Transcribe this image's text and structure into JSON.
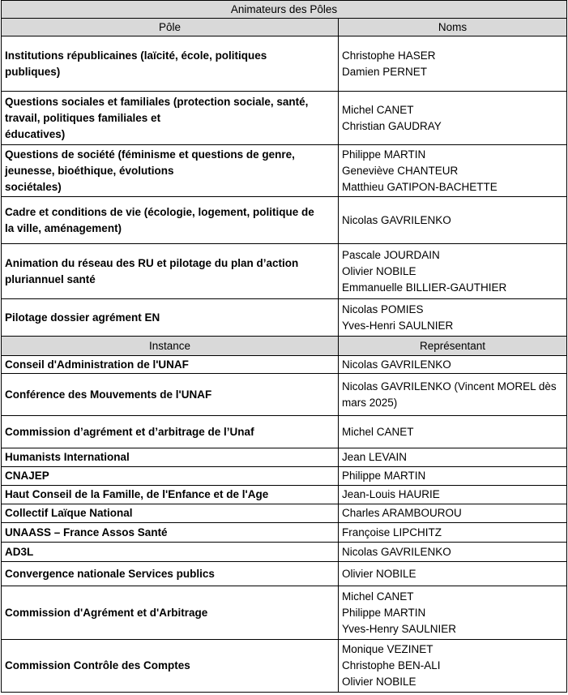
{
  "title": "Animateurs des Pôles",
  "poles": {
    "header": [
      "Pôle",
      "Noms"
    ],
    "rows": [
      {
        "pole": [
          "Institutions républicaines (laïcité, école, politiques",
          "publiques)"
        ],
        "noms": [
          "Christophe HASER",
          "Damien PERNET"
        ]
      },
      {
        "pole": [
          "Questions sociales et familiales (protection sociale, santé,",
          "travail, politiques familiales et",
          "éducatives)"
        ],
        "noms": [
          "Michel CANET",
          "Christian GAUDRAY"
        ]
      },
      {
        "pole": [
          "Questions de société (féminisme et questions de genre,",
          "jeunesse, bioéthique, évolutions",
          "sociétales)"
        ],
        "noms": [
          "Philippe MARTIN",
          "Geneviève CHANTEUR",
          "Matthieu GATIPON-BACHETTE"
        ]
      },
      {
        "pole": [
          "Cadre et conditions de vie (écologie, logement, politique de",
          "la ville, aménagement)"
        ],
        "noms": [
          "Nicolas GAVRILENKO"
        ]
      },
      {
        "pole": [
          "Animation du réseau des RU et pilotage du plan d’action",
          "pluriannuel santé"
        ],
        "noms": [
          "Pascale JOURDAIN",
          "Olivier NOBILE",
          "Emmanuelle BILLIER-GAUTHIER"
        ]
      },
      {
        "pole": [
          "Pilotage dossier agrément EN"
        ],
        "noms": [
          "Nicolas POMIES",
          "Yves-Henri SAULNIER"
        ]
      }
    ]
  },
  "instances": {
    "header": [
      "Instance",
      "Représentant"
    ],
    "rows": [
      {
        "instance": [
          "Conseil d'Administration de l'UNAF"
        ],
        "representant": [
          "Nicolas GAVRILENKO"
        ]
      },
      {
        "instance": [
          "Conférence des Mouvements de l'UNAF"
        ],
        "representant": [
          "Nicolas GAVRILENKO (Vincent MOREL dès",
          "mars 2025)"
        ]
      },
      {
        "instance": [
          "Commission d’agrément et d’arbitrage de l’Unaf"
        ],
        "representant": [
          "Michel CANET"
        ]
      },
      {
        "instance": [
          "Humanists International"
        ],
        "representant": [
          "Jean LEVAIN"
        ]
      },
      {
        "instance": [
          "CNAJEP"
        ],
        "representant": [
          "Philippe MARTIN"
        ]
      },
      {
        "instance": [
          "Haut Conseil de la Famille, de l'Enfance et de l'Age"
        ],
        "representant": [
          "Jean-Louis HAURIE"
        ]
      },
      {
        "instance": [
          "Collectif Laïque National"
        ],
        "representant": [
          "Charles ARAMBOUROU"
        ]
      },
      {
        "instance": [
          "UNAASS – France Assos Santé"
        ],
        "representant": [
          "Françoise LIPCHITZ"
        ]
      },
      {
        "instance": [
          "AD3L"
        ],
        "representant": [
          "Nicolas GAVRILENKO"
        ]
      },
      {
        "instance": [
          "Convergence nationale Services publics"
        ],
        "representant": [
          "Olivier NOBILE"
        ]
      },
      {
        "instance": [
          "Commission d'Agrément et d'Arbitrage"
        ],
        "representant": [
          "Michel CANET",
          "Philippe MARTIN",
          "Yves-Henry SAULNIER"
        ]
      },
      {
        "instance": [
          "Commission Contrôle des Comptes"
        ],
        "representant": [
          "Monique VEZINET",
          "Christophe BEN-ALI",
          "Olivier NOBILE"
        ]
      }
    ]
  }
}
